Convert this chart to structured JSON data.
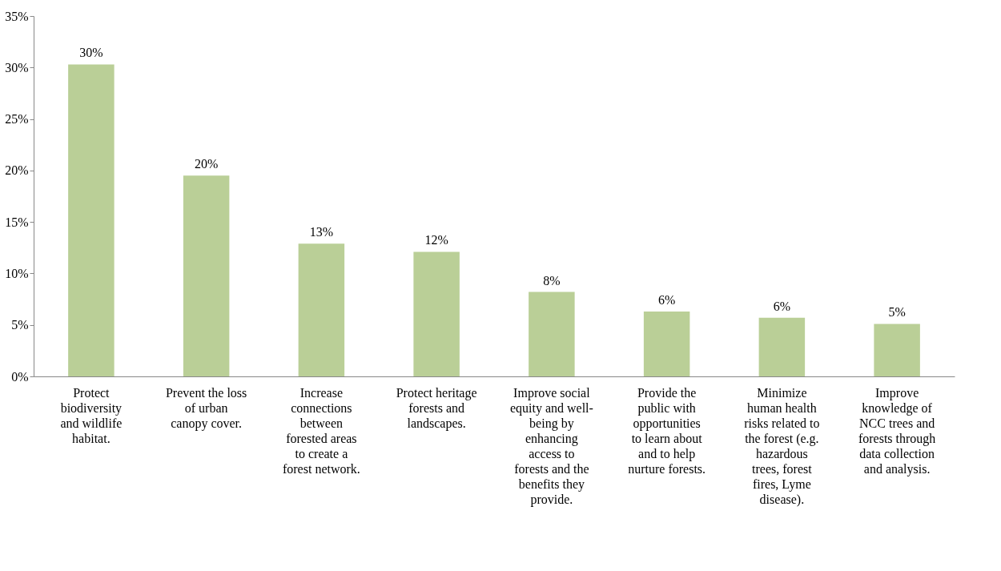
{
  "chart_data": {
    "type": "bar",
    "categories": [
      "Protect\nbiodiversity\nand wildlife\nhabitat.",
      "Prevent the loss\nof urban\ncanopy cover.",
      "Increase\nconnections\nbetween\nforested areas\nto create a\nforest network.",
      "Protect heritage\nforests and\nlandscapes.",
      "Improve social\nequity and well-\nbeing by\nenhancing\naccess to\nforests and the\nbenefits they\nprovide.",
      "Provide the\npublic with\nopportunities\nto learn about\nand to help\nnurture forests.",
      "Minimize\nhuman health\nrisks related to\nthe forest (e.g.\nhazardous\ntrees, forest\nfires, Lyme\ndisease).",
      "Improve\nknowledge of\nNCC trees and\nforests through\ndata collection\nand analysis."
    ],
    "values": [
      30.3,
      19.5,
      12.9,
      12.1,
      8.2,
      6.3,
      5.7,
      5.1
    ],
    "value_labels": [
      "30%",
      "20%",
      "13%",
      "12%",
      "8%",
      "6%",
      "6%",
      "5%"
    ],
    "color": "#bacf97",
    "ylim": [
      0,
      35
    ],
    "yticks": [
      {
        "value": 0,
        "label": "0%"
      },
      {
        "value": 5,
        "label": "5%"
      },
      {
        "value": 10,
        "label": "10%"
      },
      {
        "value": 15,
        "label": "15%"
      },
      {
        "value": 20,
        "label": "20%"
      },
      {
        "value": 25,
        "label": "25%"
      },
      {
        "value": 30,
        "label": "30%"
      },
      {
        "value": 35,
        "label": "35%"
      }
    ],
    "grid": false
  }
}
